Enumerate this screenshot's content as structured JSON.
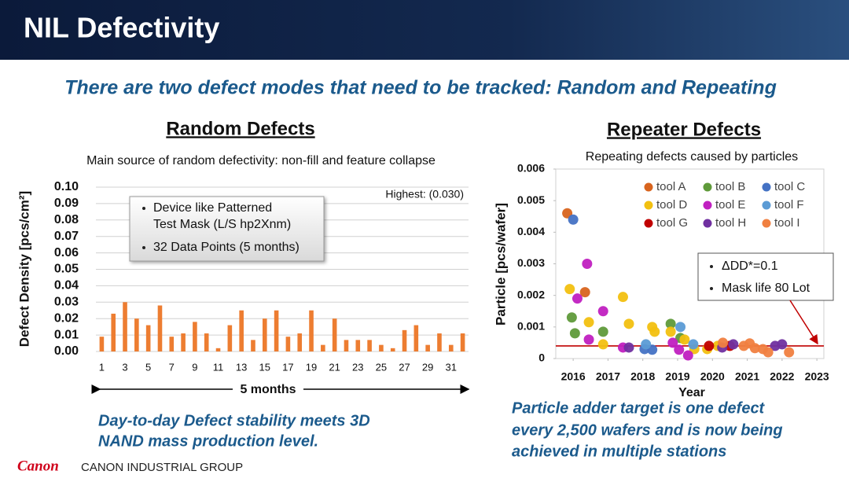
{
  "header": {
    "title": "NIL Defectivity"
  },
  "subtitle": "There are two defect modes that need to be tracked: Random and Repeating",
  "chart_data": [
    {
      "type": "bar",
      "title": "Random Defects",
      "subtitle": "Main source of random defectivity: non-fill and feature collapse",
      "y_label": "Defect Density [pcs/cm²]",
      "x_label": "5 months",
      "annotation": "Highest: (0.030)",
      "box": [
        [
          "Device like Patterned",
          "Test Mask (L/S hp2Xnm)"
        ],
        [
          "32 Data Points (5 months)"
        ]
      ],
      "categories": [
        1,
        null,
        3,
        null,
        5,
        null,
        7,
        null,
        9,
        null,
        11,
        null,
        13,
        null,
        15,
        null,
        17,
        null,
        19,
        null,
        21,
        null,
        23,
        null,
        25,
        null,
        27,
        null,
        29,
        null,
        31,
        null
      ],
      "values": [
        0.009,
        0.023,
        0.03,
        0.02,
        0.016,
        0.028,
        0.009,
        0.011,
        0.018,
        0.011,
        0.002,
        0.016,
        0.025,
        0.007,
        0.02,
        0.025,
        0.009,
        0.011,
        0.025,
        0.004,
        0.02,
        0.007,
        0.007,
        0.007,
        0.004,
        0.002,
        0.013,
        0.016,
        0.004,
        0.011,
        0.004,
        0.011
      ],
      "color": "#ed7d31",
      "ylim": [
        0,
        0.1
      ],
      "yticks": [
        {
          "value": 0,
          "label": "0.00"
        },
        0.01,
        0.02,
        0.03,
        0.04,
        0.05,
        0.06,
        0.07,
        0.08,
        0.09,
        {
          "value": 0.1,
          "label": "0.10"
        }
      ],
      "grid": true
    },
    {
      "type": "scatter",
      "title": "Repeater Defects",
      "subtitle": "Repeating defects caused by particles",
      "y_label": "Particle [pcs/wafer]",
      "x_label": "Year",
      "box": [
        "ΔDD*=0.1",
        "Mask life 80 Lot"
      ],
      "reference_line": {
        "value": 0.0004,
        "color": "#c00000"
      },
      "xlim": [
        2015.5,
        2023.2
      ],
      "xticks": [
        2016,
        2017,
        2018,
        2019,
        2020,
        2021,
        2022,
        2023
      ],
      "ylim": [
        0,
        0.006
      ],
      "yticks": [
        0,
        0.001,
        0.002,
        0.003,
        0.004,
        0.005,
        0.006
      ],
      "series": [
        {
          "name": "tool A",
          "color": "#d8641e",
          "x": [
            2015.83,
            2016.34
          ],
          "values": [
            0.0046,
            0.0021
          ]
        },
        {
          "name": "tool B",
          "color": "#5f9a3a",
          "x": [
            2015.96,
            2016.05,
            2016.86,
            2018.8,
            2019.08
          ],
          "values": [
            0.0013,
            0.0008,
            0.00085,
            0.0011,
            0.00065
          ]
        },
        {
          "name": "tool C",
          "color": "#4472c4",
          "x": [
            2016.0,
            2018.05,
            2018.27
          ],
          "values": [
            0.0044,
            0.0003,
            0.00028
          ]
        },
        {
          "name": "tool D",
          "color": "#f2c010",
          "x": [
            2015.9,
            2016.45,
            2016.86,
            2017.43,
            2017.6,
            2018.27,
            2018.34,
            2018.8,
            2019.2,
            2019.48,
            2019.85,
            2020.15
          ],
          "values": [
            0.0022,
            0.00115,
            0.00045,
            0.00195,
            0.0011,
            0.001,
            0.00085,
            0.00085,
            0.0006,
            0.0003,
            0.0003,
            0.0004
          ]
        },
        {
          "name": "tool E",
          "color": "#c020c0",
          "x": [
            2016.4,
            2016.12,
            2016.86,
            2016.45,
            2017.43,
            2018.86,
            2019.3,
            2019.04
          ],
          "values": [
            0.003,
            0.0019,
            0.0015,
            0.0006,
            0.00035,
            0.0005,
            0.0001,
            0.00028
          ]
        },
        {
          "name": "tool F",
          "color": "#5b9bd5",
          "x": [
            2019.08,
            2019.45,
            2018.09
          ],
          "values": [
            0.001,
            0.00045,
            0.00045
          ]
        },
        {
          "name": "tool G",
          "color": "#c00000",
          "x": [
            2019.9,
            2020.5
          ],
          "values": [
            0.0004,
            0.0004
          ]
        },
        {
          "name": "tool H",
          "color": "#7030a0",
          "x": [
            2017.6,
            2020.28,
            2020.6,
            2021.8,
            2022.0
          ],
          "values": [
            0.00035,
            0.00035,
            0.00045,
            0.0004,
            0.00045
          ]
        },
        {
          "name": "tool I",
          "color": "#f08040",
          "x": [
            2020.3,
            2020.9,
            2021.07,
            2021.22,
            2021.45,
            2021.6,
            2022.2
          ],
          "values": [
            0.0005,
            0.0004,
            0.00048,
            0.00033,
            0.0003,
            0.0002,
            0.0002
          ]
        }
      ]
    }
  ],
  "captions": [
    [
      "Day-to-day Defect stability meets 3D",
      "NAND mass production level."
    ],
    [
      "Particle adder target is one defect",
      "every 2,500 wafers and is now being",
      "achieved in multiple stations"
    ]
  ],
  "footer": {
    "logo": "Canon",
    "text": "CANON INDUSTRIAL GROUP"
  }
}
